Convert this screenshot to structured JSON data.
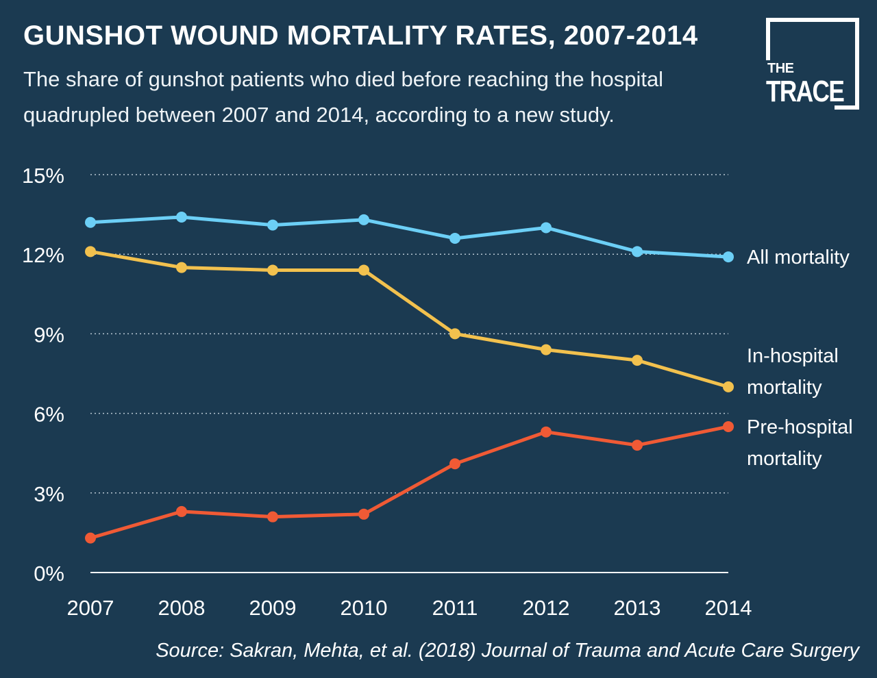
{
  "header": {
    "title": "GUNSHOT WOUND MORTALITY RATES, 2007-2014",
    "subtitle": "The share of gunshot patients who died before reaching the hospital quadrupled between 2007 and 2014, according to a new study."
  },
  "logo": {
    "the": "THE",
    "trace": "TRACE"
  },
  "source": "Source: Sakran, Mehta, et al. (2018) Journal of Trauma and Acute Care Surgery",
  "chart_data": {
    "type": "line",
    "title": "GUNSHOT WOUND MORTALITY RATES, 2007-2014",
    "subtitle": "The share of gunshot patients who died before reaching the hospital quadrupled between 2007 and 2014, according to a new study.",
    "xlabel": "",
    "ylabel": "",
    "x": [
      "2007",
      "2008",
      "2009",
      "2010",
      "2011",
      "2012",
      "2013",
      "2014"
    ],
    "ylim": [
      0,
      15
    ],
    "yticks": [
      0,
      3,
      6,
      9,
      12,
      15
    ],
    "ytick_labels": [
      "0%",
      "3%",
      "6%",
      "9%",
      "12%",
      "15%"
    ],
    "grid": "horizontal dotted",
    "legend": "direct labels at right end of lines",
    "series": [
      {
        "name": "All mortality",
        "label_lines": [
          "All mortality"
        ],
        "color": "#6ccff6",
        "values": [
          13.2,
          13.4,
          13.1,
          13.3,
          12.6,
          13.0,
          12.1,
          11.9
        ]
      },
      {
        "name": "In-hospital mortality",
        "label_lines": [
          "In-hospital",
          "mortality"
        ],
        "color": "#f2c14e",
        "values": [
          12.1,
          11.5,
          11.4,
          11.4,
          9.0,
          8.4,
          8.0,
          7.0
        ]
      },
      {
        "name": "Pre-hospital mortality",
        "label_lines": [
          "Pre-hospital",
          "mortality"
        ],
        "color": "#f05a35",
        "values": [
          1.3,
          2.3,
          2.1,
          2.2,
          4.1,
          5.3,
          4.8,
          5.5
        ]
      }
    ]
  },
  "colors": {
    "background": "#1b3a51",
    "text": "#ffffff",
    "grid": "#b9c7d2"
  }
}
